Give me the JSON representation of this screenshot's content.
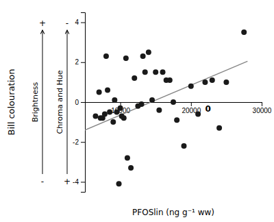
{
  "chart_data": {
    "type": "scatter",
    "series": [
      {
        "type": "scatter",
        "color": "#1a1a1a",
        "x": [
          6500,
          7000,
          7200,
          7500,
          7800,
          8000,
          8200,
          8500,
          9000,
          9200,
          9500,
          9800,
          10000,
          10200,
          10500,
          10800,
          11000,
          11500,
          12000,
          12500,
          13000,
          13200,
          13500,
          14000,
          14500,
          15000,
          15500,
          16000,
          16500,
          17000,
          17500,
          18000,
          19000,
          20000,
          21000,
          22000,
          23000,
          24000,
          25000,
          27500
        ],
        "values": [
          -0.7,
          0.5,
          -0.8,
          -0.8,
          -0.6,
          2.3,
          0.6,
          -0.5,
          -1.0,
          0.1,
          -0.5,
          -4.1,
          -0.3,
          -0.7,
          -0.8,
          2.2,
          -2.8,
          -3.3,
          1.2,
          -0.2,
          -0.1,
          2.3,
          1.5,
          2.5,
          0.1,
          1.5,
          -0.4,
          1.5,
          1.1,
          1.1,
          0.0,
          -0.9,
          -2.2,
          0.8,
          -0.6,
          1.0,
          1.1,
          -1.3,
          1.0,
          3.5
        ]
      },
      {
        "type": "line",
        "color": "#888888",
        "x": [
          5000,
          28000
        ],
        "values": [
          -1.4,
          2.05
        ]
      }
    ],
    "xlim": [
      5000,
      30000
    ],
    "ylim": [
      -4.5,
      4.5
    ],
    "xticks": [
      10000,
      20000,
      30000
    ],
    "yticks": [
      -4,
      -2,
      0,
      2,
      4
    ],
    "x_label": "PFOSlin (ng g⁻¹ ww)",
    "y_label": "Bill colouration",
    "annotations": [
      {
        "text": "0",
        "x": 22000,
        "y": 0
      }
    ],
    "y_arrows": [
      {
        "label": "Brightness",
        "top": "+",
        "bottom": "-"
      },
      {
        "label": "Chroma and Hue",
        "top": "-",
        "bottom": "+"
      }
    ]
  }
}
